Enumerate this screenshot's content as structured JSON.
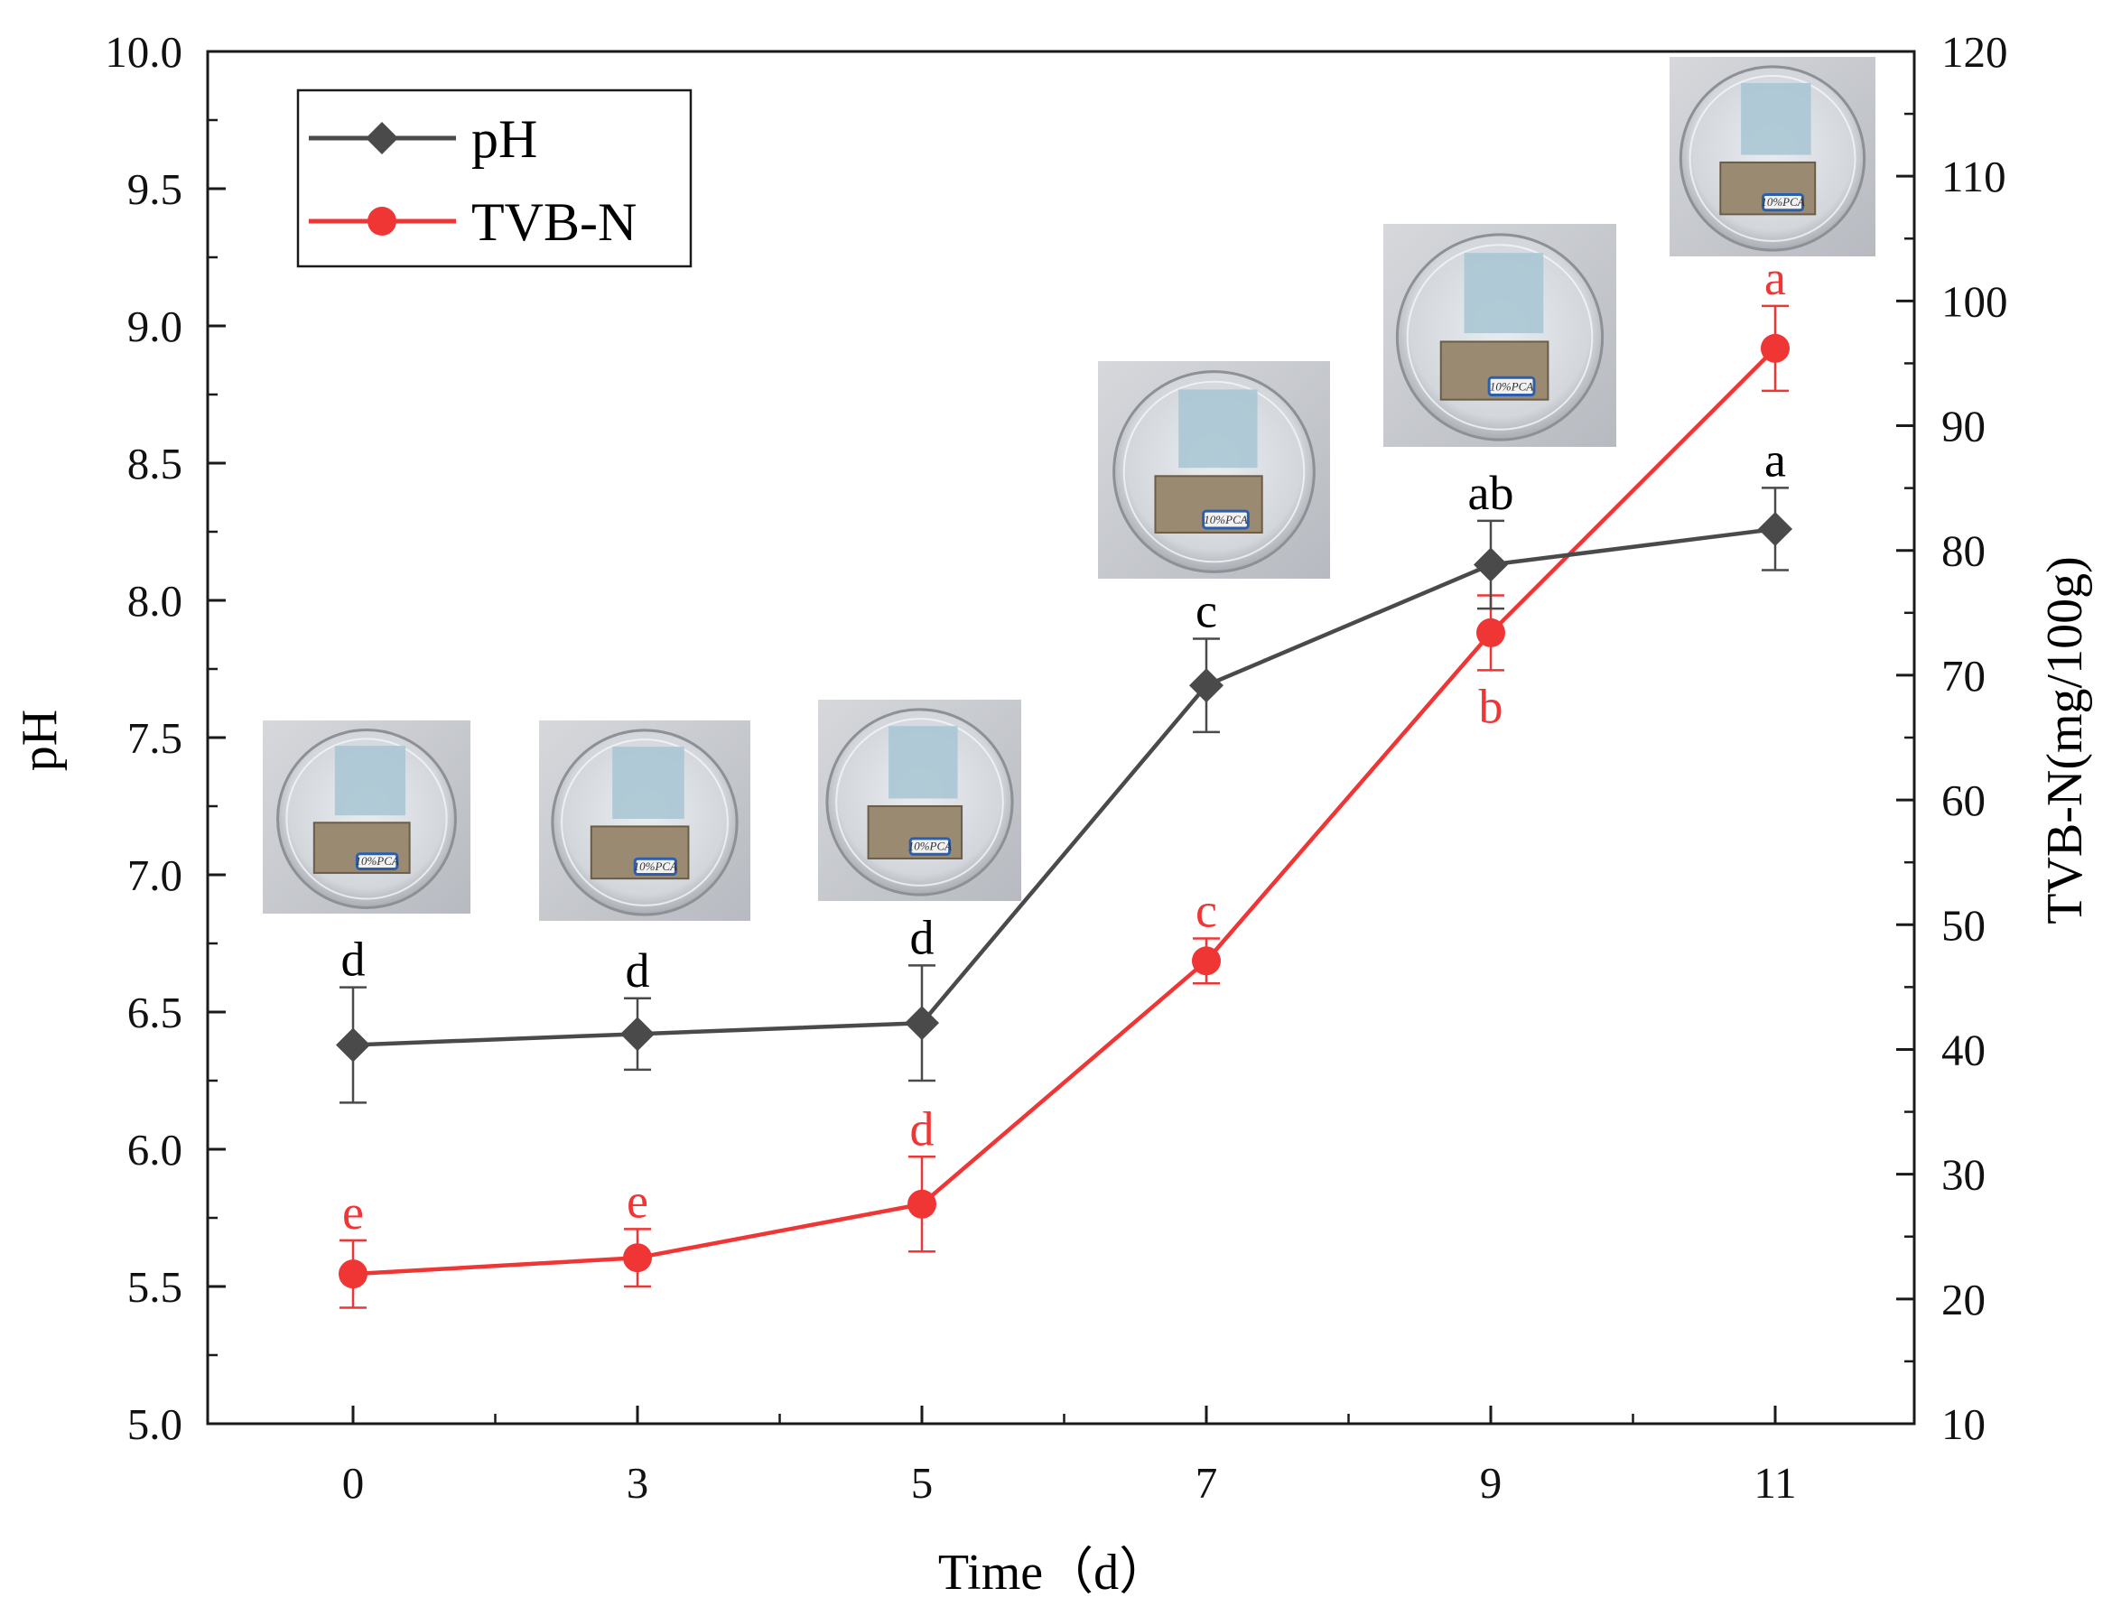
{
  "chart_data": {
    "type": "line",
    "title": "",
    "xlabel": "Time（d）",
    "ylabel": "pH",
    "y2label": "TVB-N(mg/100g)",
    "categories": [
      "0",
      "3",
      "5",
      "7",
      "9",
      "11"
    ],
    "ylim": [
      5.0,
      10.0
    ],
    "y2lim": [
      10,
      120
    ],
    "yticks": [
      "5.0",
      "5.5",
      "6.0",
      "6.5",
      "7.0",
      "7.5",
      "8.0",
      "8.5",
      "9.0",
      "9.5",
      "10.0"
    ],
    "y2ticks": [
      "10",
      "20",
      "30",
      "40",
      "50",
      "60",
      "70",
      "80",
      "90",
      "100",
      "110",
      "120"
    ],
    "legend_position": "top-left",
    "grid": false,
    "series": [
      {
        "name": "pH",
        "axis": "left",
        "color": "#4a4a4a",
        "marker": "diamond",
        "values": [
          6.38,
          6.42,
          6.46,
          7.69,
          8.13,
          8.26
        ],
        "errors": [
          0.21,
          0.13,
          0.21,
          0.17,
          0.16,
          0.15
        ],
        "significance": [
          "d",
          "d",
          "d",
          "c",
          "ab",
          "a"
        ]
      },
      {
        "name": "TVB-N",
        "axis": "right",
        "color": "#f03535",
        "marker": "circle",
        "values": [
          22.0,
          23.3,
          27.6,
          47.1,
          73.4,
          96.2
        ],
        "errors": [
          2.7,
          2.3,
          3.8,
          1.8,
          3.0,
          3.4
        ],
        "significance": [
          "e",
          "e",
          "d",
          "c",
          "b",
          "a"
        ]
      }
    ],
    "inset_photos": [
      {
        "label": "10%PCA"
      },
      {
        "label": "10%PCA"
      },
      {
        "label": "10%PCA"
      },
      {
        "label": "10%PCA"
      },
      {
        "label": "10%PCA"
      },
      {
        "label": "10%PCA"
      }
    ]
  }
}
